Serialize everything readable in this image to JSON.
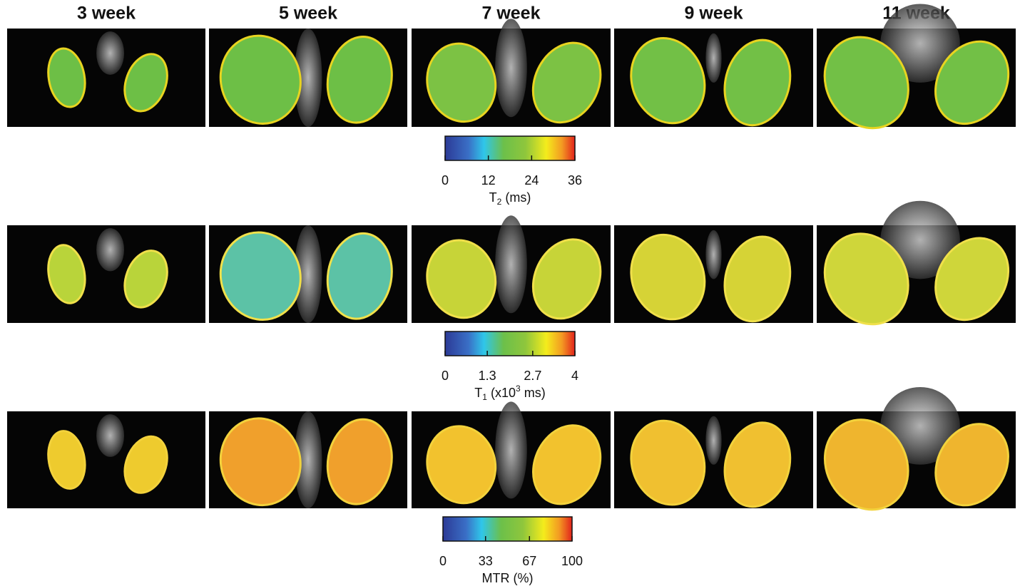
{
  "columns": [
    "3 week",
    "5 week",
    "7 week",
    "9 week",
    "11 week"
  ],
  "colorbars": [
    {
      "lim": [
        0,
        36
      ],
      "ticks": [
        0,
        12,
        24,
        36
      ],
      "label": [
        {
          "text": "T"
        },
        {
          "sub": "2"
        },
        {
          "text": " (ms)"
        }
      ]
    },
    {
      "lim": [
        0,
        4
      ],
      "ticks": [
        0,
        1.3,
        2.7,
        4
      ],
      "label": [
        {
          "text": "T"
        },
        {
          "sub": "1"
        },
        {
          "text": " (x10"
        },
        {
          "sup": "3"
        },
        {
          "text": " ms)"
        }
      ]
    },
    {
      "lim": [
        0,
        100
      ],
      "ticks": [
        0,
        33,
        67,
        100
      ],
      "label": [
        {
          "text": "MTR (%)"
        }
      ]
    }
  ]
}
